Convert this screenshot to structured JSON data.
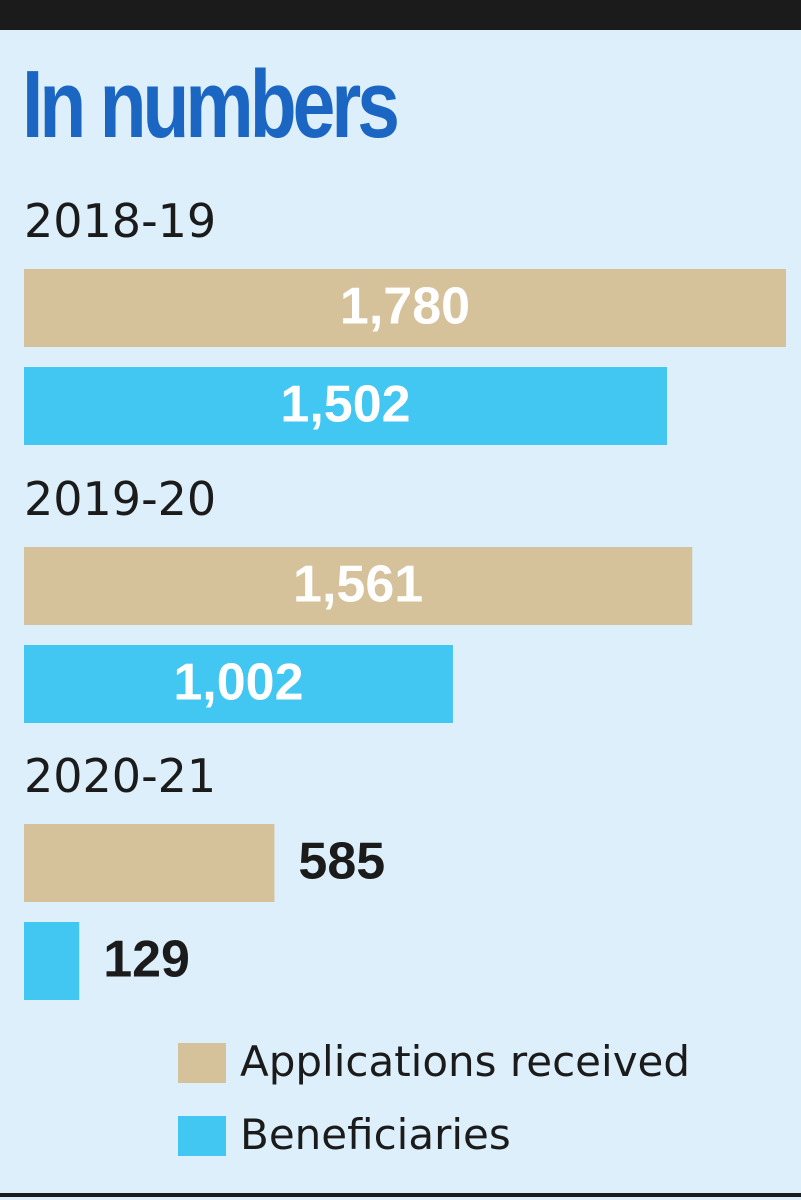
{
  "header": {
    "title": "In numbers"
  },
  "colors": {
    "applications": "#d5c19a",
    "beneficiaries": "#42c6f2",
    "title": "#1a66c2",
    "label_inside": "#ffffff",
    "label_outside": "#1b1b1b"
  },
  "chart_data": {
    "type": "bar",
    "orientation": "horizontal",
    "title": "In numbers",
    "categories": [
      "2018-19",
      "2019-20",
      "2020-21"
    ],
    "series": [
      {
        "name": "Applications received",
        "color": "#d5c19a",
        "values": [
          1780,
          1561,
          585
        ],
        "labels": [
          "1,780",
          "1,561",
          "585"
        ]
      },
      {
        "name": "Beneficiaries",
        "color": "#42c6f2",
        "values": [
          1502,
          1002,
          129
        ],
        "labels": [
          "1,502",
          "1,002",
          "129"
        ]
      }
    ],
    "xlim": [
      0,
      1780
    ],
    "grid": false,
    "legend": "bottom"
  }
}
